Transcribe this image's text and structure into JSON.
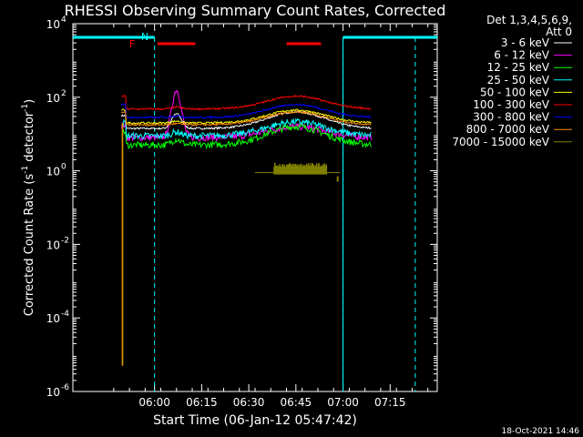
{
  "chart_data": {
    "type": "line",
    "title": "RHESSI Observing Summary Count Rates, Corrected",
    "xlabel": "Start Time (06-Jan-12 05:47:42)",
    "ylabel_parts": {
      "base": "Corrected Count Rate (s",
      "sup1": "-1",
      "mid": " detector",
      "sup2": "-1",
      "end": ")"
    },
    "footer_date": "18-Oct-2021 14:46",
    "yscale": "log",
    "ylim_exp": [
      -6,
      4
    ],
    "xlim_min": [
      -13,
      103
    ],
    "x_ticks": [
      {
        "min": 13,
        "label": "06:00"
      },
      {
        "min": 28,
        "label": "06:15"
      },
      {
        "min": 43,
        "label": "06:30"
      },
      {
        "min": 58,
        "label": "06:45"
      },
      {
        "min": 73,
        "label": "07:00"
      },
      {
        "min": 88,
        "label": "07:15"
      }
    ],
    "y_ticks": [
      {
        "exp": 4,
        "label": "10",
        "sup": "4"
      },
      {
        "exp": 2,
        "label": "10",
        "sup": "2"
      },
      {
        "exp": 0,
        "label": "10",
        "sup": "0"
      },
      {
        "exp": -2,
        "label": "10",
        "sup": "-2"
      },
      {
        "exp": -4,
        "label": "10",
        "sup": "-4"
      },
      {
        "exp": -6,
        "label": "10",
        "sup": "-6"
      }
    ],
    "legend_header": [
      "Det 1,3,4,5,6,9,",
      "Att 0"
    ],
    "series": [
      {
        "name": "3 - 6 keV",
        "color": "#ffffff",
        "base": 1.15,
        "hump": 0.45,
        "flare": 0.4
      },
      {
        "name": "6 - 12 keV",
        "color": "#ff00ff",
        "base": 0.9,
        "hump": 0.3,
        "flare": 1.3
      },
      {
        "name": "12 - 25 keV",
        "color": "#00ff00",
        "base": 0.7,
        "hump": 0.5,
        "flare": 0.15
      },
      {
        "name": "25 - 50 keV",
        "color": "#00ffff",
        "base": 0.95,
        "hump": 0.38,
        "flare": 0.1
      },
      {
        "name": "50 - 100 keV",
        "color": "#ffff00",
        "base": 1.3,
        "hump": 0.35,
        "flare": 0.05
      },
      {
        "name": "100 - 300 keV",
        "color": "#ff0000",
        "base": 1.68,
        "hump": 0.35,
        "flare": 0.05
      },
      {
        "name": "300 - 800 keV",
        "color": "#0000ff",
        "base": 1.45,
        "hump": 0.35,
        "flare": 0.05
      },
      {
        "name": "800 - 7000 keV",
        "color": "#ff8c00",
        "base": 1.25,
        "hump": 0.35,
        "flare": 0.03
      },
      {
        "name": "7000 - 15000 keV",
        "color": "#808000",
        "base": 0.0,
        "hump": 0.0,
        "flare": 0.0
      }
    ],
    "annotations": {
      "flare_flag_label": "F",
      "night_label": "N",
      "saa_label": "N"
    },
    "night_intervals_min": [
      [
        -13,
        13
      ],
      [
        73,
        103
      ]
    ],
    "dashed_lines_min": [
      13,
      73,
      96
    ],
    "flare_flag_bars_min": [
      [
        14,
        26
      ],
      [
        55,
        66
      ]
    ]
  }
}
